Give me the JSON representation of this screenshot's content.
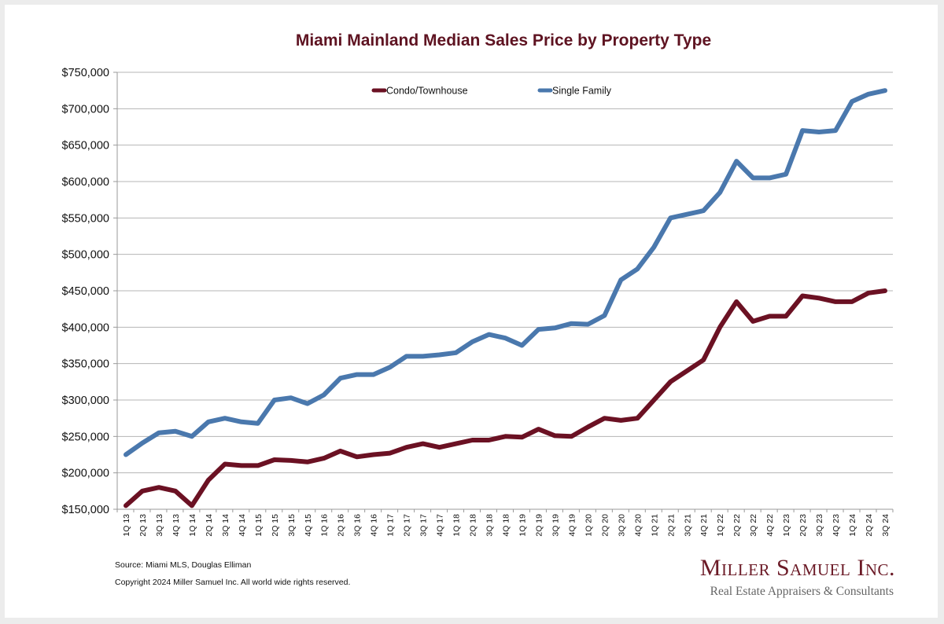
{
  "chart_data": {
    "type": "line",
    "title": "Miami Mainland Median Sales Price by Property Type",
    "xlabel": "",
    "ylabel": "",
    "ylim": [
      150000,
      750000
    ],
    "ytick_step": 50000,
    "yticks": [
      "$150,000",
      "$200,000",
      "$250,000",
      "$300,000",
      "$350,000",
      "$400,000",
      "$450,000",
      "$500,000",
      "$550,000",
      "$600,000",
      "$650,000",
      "$700,000",
      "$750,000"
    ],
    "grid": true,
    "legend_position": "top-center",
    "categories": [
      "1Q 13",
      "2Q 13",
      "3Q 13",
      "4Q 13",
      "1Q 14",
      "2Q 14",
      "3Q 14",
      "4Q 14",
      "1Q 15",
      "2Q 15",
      "3Q 15",
      "4Q 15",
      "1Q 16",
      "2Q 16",
      "3Q 16",
      "4Q 16",
      "1Q 17",
      "2Q 17",
      "3Q 17",
      "4Q 17",
      "1Q 18",
      "2Q 18",
      "3Q 18",
      "4Q 18",
      "1Q 19",
      "2Q 19",
      "3Q 19",
      "4Q 19",
      "1Q 20",
      "2Q 20",
      "3Q 20",
      "4Q 20",
      "1Q 21",
      "2Q 21",
      "3Q 21",
      "4Q 21",
      "1Q 22",
      "2Q 22",
      "3Q 22",
      "4Q 22",
      "1Q 23",
      "2Q 23",
      "3Q 23",
      "4Q 23",
      "1Q 24",
      "2Q 24",
      "3Q 24"
    ],
    "series": [
      {
        "name": "Condo/Townhouse",
        "color": "#6b1123",
        "values": [
          155000,
          175000,
          180000,
          175000,
          155000,
          190000,
          212000,
          210000,
          210000,
          218000,
          217000,
          215000,
          220000,
          230000,
          222000,
          225000,
          227000,
          235000,
          240000,
          235000,
          240000,
          245000,
          245000,
          250000,
          249000,
          260000,
          251000,
          250000,
          263000,
          275000,
          272000,
          275000,
          300000,
          325000,
          340000,
          355000,
          400000,
          435000,
          408000,
          415000,
          415000,
          443000,
          440000,
          435000,
          435000,
          447000,
          450000
        ]
      },
      {
        "name": "Single Family",
        "color": "#4a78ad",
        "values": [
          225000,
          241000,
          255000,
          257000,
          250000,
          270000,
          275000,
          270000,
          268000,
          300000,
          303000,
          295000,
          307000,
          330000,
          335000,
          335000,
          345000,
          360000,
          360000,
          362000,
          365000,
          380000,
          390000,
          385000,
          375000,
          397000,
          399000,
          405000,
          404000,
          416000,
          465000,
          480000,
          510000,
          550000,
          555000,
          560000,
          585000,
          628000,
          605000,
          605000,
          610000,
          670000,
          668000,
          670000,
          710000,
          720000,
          725000
        ]
      }
    ]
  },
  "footer": {
    "source": "Source: Miami MLS, Douglas Elliman",
    "copyright": "Copyright 2024 Miller Samuel Inc.  All world wide rights reserved."
  },
  "logo": {
    "name": "Miller Samuel Inc.",
    "tagline": "Real Estate Appraisers & Consultants"
  }
}
